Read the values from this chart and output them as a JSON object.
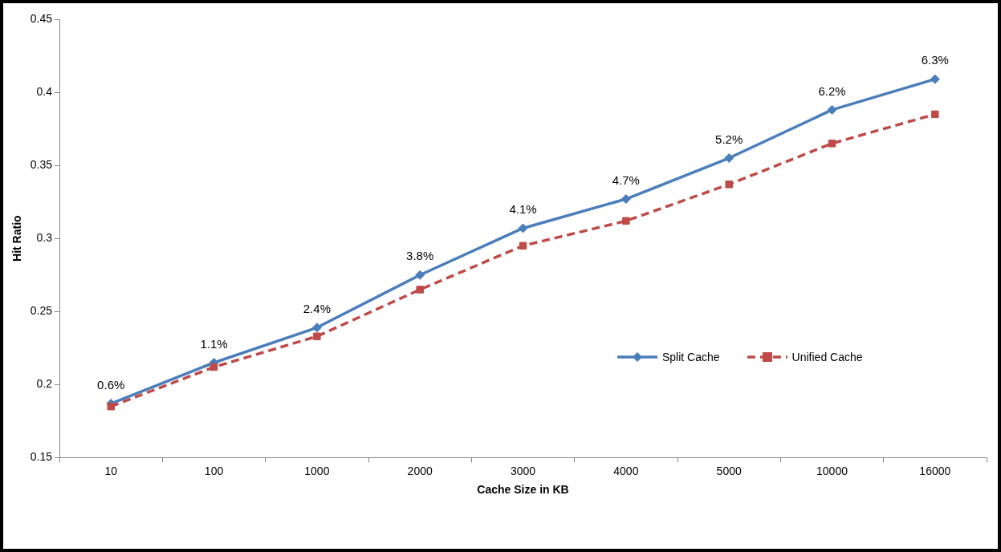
{
  "chart_data": {
    "type": "line",
    "xlabel": "Cache Size in KB",
    "ylabel": "Hit Ratio",
    "categories": [
      "10",
      "100",
      "1000",
      "2000",
      "3000",
      "4000",
      "5000",
      "10000",
      "16000"
    ],
    "series": [
      {
        "name": "Split Cache",
        "color": "#4a7ebb",
        "marker": "diamond",
        "line_style": "solid",
        "values": [
          0.187,
          0.215,
          0.239,
          0.275,
          0.307,
          0.327,
          0.355,
          0.388,
          0.409
        ]
      },
      {
        "name": "Unified Cache",
        "color": "#be4b48",
        "marker": "square",
        "line_style": "dashed",
        "values": [
          0.185,
          0.212,
          0.233,
          0.265,
          0.295,
          0.312,
          0.337,
          0.365,
          0.385
        ]
      }
    ],
    "ylim": [
      0.15,
      0.45
    ],
    "yticks": [
      0.15,
      0.2,
      0.25,
      0.3,
      0.35,
      0.4,
      0.45
    ],
    "grid": false,
    "legend": "right",
    "annotations": [
      {
        "text": "0.6%",
        "x": "10",
        "y": 0.187
      },
      {
        "text": "1.1%",
        "x": "100",
        "y": 0.215
      },
      {
        "text": "2.4%",
        "x": "1000",
        "y": 0.239
      },
      {
        "text": "3.8%",
        "x": "2000",
        "y": 0.275
      },
      {
        "text": "4.1%",
        "x": "3000",
        "y": 0.307
      },
      {
        "text": "4.7%",
        "x": "4000",
        "y": 0.327
      },
      {
        "text": "5.2%",
        "x": "5000",
        "y": 0.355
      },
      {
        "text": "6.2%",
        "x": "10000",
        "y": 0.388
      },
      {
        "text": "6.3%",
        "x": "16000",
        "y": 0.409
      }
    ]
  }
}
